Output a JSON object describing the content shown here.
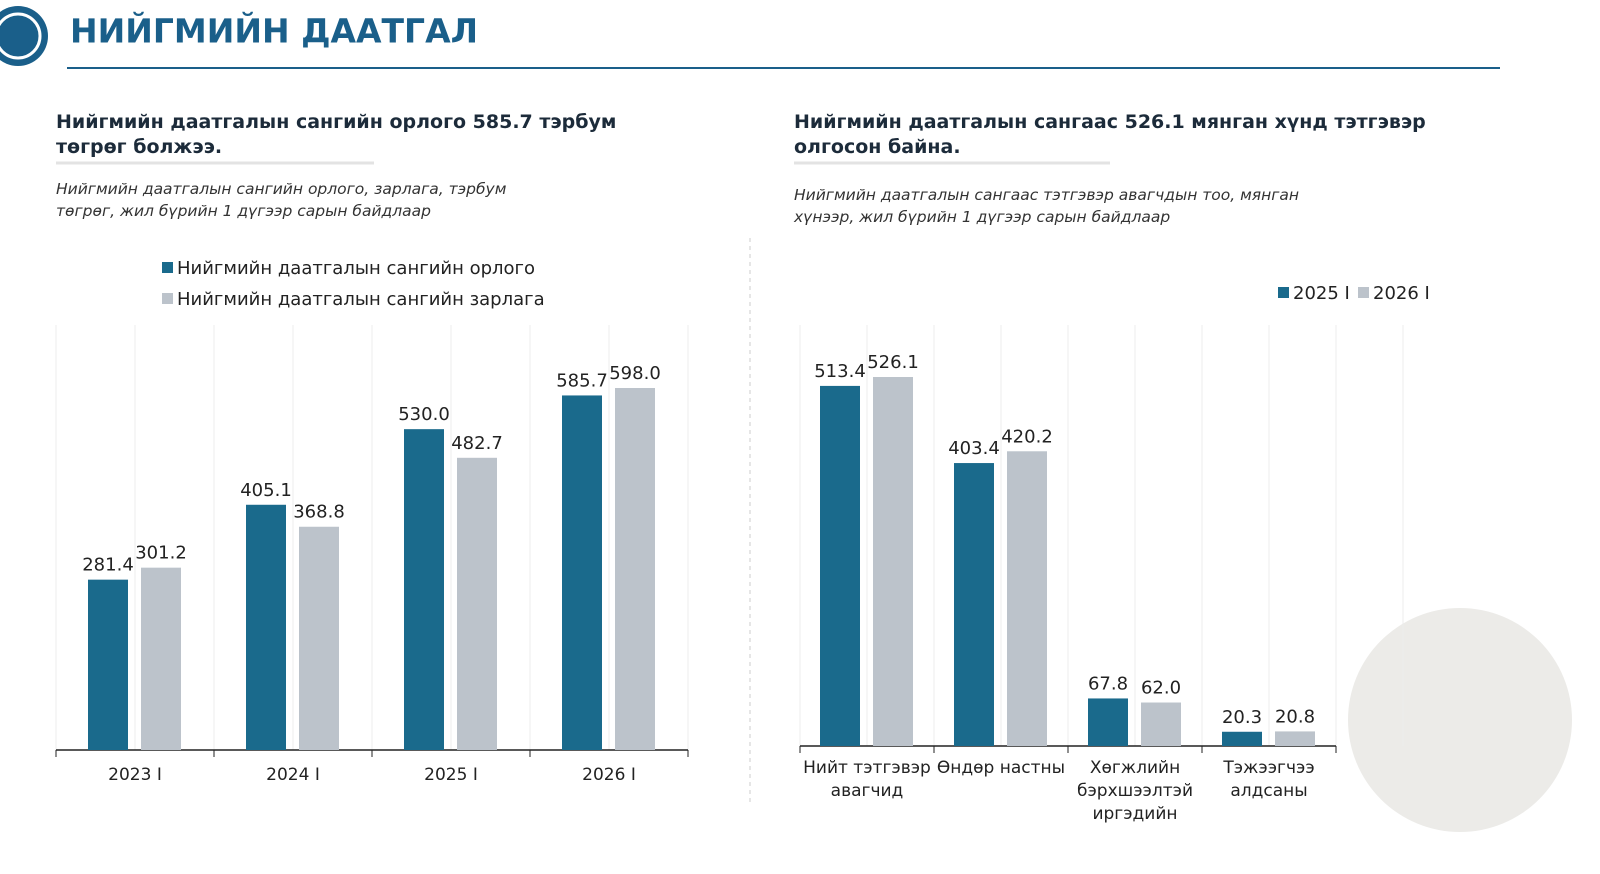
{
  "header": {
    "title": "НИЙГМИЙН ДААТГАЛ"
  },
  "chart_data": [
    {
      "type": "bar",
      "title": "Нийгмийн даатгалын сангийн орлого 585.7 тэрбум төгрөг болжээ.",
      "subtitle": "Нийгмийн даатгалын сангийн орлого, зарлага, тэрбум төгрөг, жил бүрийн 1 дүгээр сарын байдлаар",
      "categories": [
        "2023 I",
        "2024 I",
        "2025 I",
        "2026 I"
      ],
      "series": [
        {
          "name": "Нийгмийн даатгалын сангийн орлого",
          "color": "#1a6a8c",
          "values": [
            281.4,
            405.1,
            530.0,
            585.7
          ],
          "value_labels": [
            "281.4",
            "405.1",
            "530.0",
            "585.7"
          ]
        },
        {
          "name": "Нийгмийн даатгалын сангийн зарлага",
          "color": "#bcc3cb",
          "values": [
            301.2,
            368.8,
            482.7,
            598.0
          ],
          "value_labels": [
            "301.2",
            "368.8",
            "482.7",
            "598.0"
          ]
        }
      ],
      "legend": "top-left",
      "grid": true
    },
    {
      "type": "bar",
      "title": "Нийгмийн даатгалын сангаас 526.1 мянган хүнд тэтгэвэр олгосон байна.",
      "subtitle": "Нийгмийн даатгалын сангаас тэтгэвэр авагчдын тоо, мянган хүнээр, жил бүрийн 1 дүгээр сарын байдлаар",
      "categories": [
        "Нийт тэтгэвэр авагчид",
        "Өндөр настны",
        "Хөгжлийн бэрхшээлтэй иргэдийн",
        "Тэжээгчээ алдсаны"
      ],
      "series": [
        {
          "name": "2025 I",
          "color": "#1a6a8c",
          "values": [
            513.4,
            403.4,
            67.8,
            20.3
          ],
          "value_labels": [
            "513.4",
            "403.4",
            "67.8",
            "20.3"
          ]
        },
        {
          "name": "2026 I",
          "color": "#bcc3cb",
          "values": [
            526.1,
            420.2,
            62.0,
            20.8
          ],
          "value_labels": [
            "526.1",
            "420.2",
            "62.0",
            "20.8"
          ]
        }
      ],
      "legend": "top-right",
      "grid": true
    }
  ]
}
